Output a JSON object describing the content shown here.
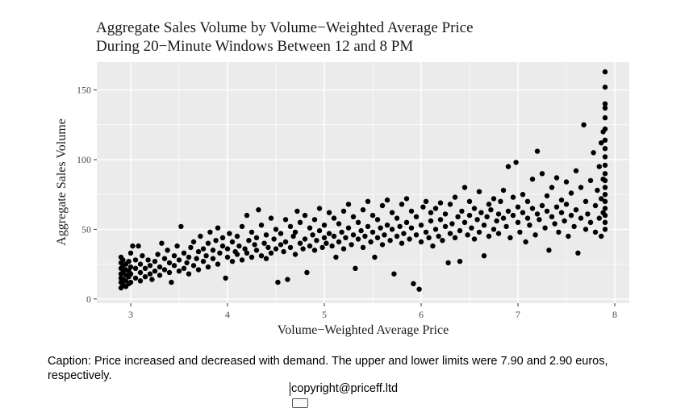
{
  "chart_data": {
    "type": "scatter",
    "title": "Aggregate Sales Volume by Volume−Weighted Average Price",
    "subtitle": "During 20−Minute Windows Between 12 and 8 PM",
    "xlabel": "Volume−Weighted Average Price",
    "ylabel": "Aggregate Sales Volume",
    "xlim": [
      2.65,
      8.15
    ],
    "ylim": [
      -3,
      170
    ],
    "x_ticks": [
      3,
      4,
      5,
      6,
      7,
      8
    ],
    "y_ticks": [
      0,
      50,
      100,
      150
    ],
    "x_tick_labels": [
      "3",
      "4",
      "5",
      "6",
      "7",
      "8"
    ],
    "y_tick_labels": [
      "0",
      "50",
      "100",
      "150"
    ],
    "grid": true,
    "legend": "none",
    "panel_color": "#ebebeb",
    "grid_color": "#ffffff",
    "point_color": "#000000",
    "points": [
      [
        2.9,
        8
      ],
      [
        2.9,
        12
      ],
      [
        2.9,
        15
      ],
      [
        2.9,
        18
      ],
      [
        2.9,
        22
      ],
      [
        2.9,
        26
      ],
      [
        2.9,
        30
      ],
      [
        2.92,
        10
      ],
      [
        2.92,
        14
      ],
      [
        2.92,
        19
      ],
      [
        2.92,
        24
      ],
      [
        2.92,
        28
      ],
      [
        2.95,
        9
      ],
      [
        2.95,
        13
      ],
      [
        2.95,
        17
      ],
      [
        2.95,
        21
      ],
      [
        2.95,
        25
      ],
      [
        2.98,
        11
      ],
      [
        2.98,
        16
      ],
      [
        2.98,
        20
      ],
      [
        2.98,
        27
      ],
      [
        3.0,
        12
      ],
      [
        3.0,
        18
      ],
      [
        3.0,
        23
      ],
      [
        3.0,
        33
      ],
      [
        3.02,
        38
      ],
      [
        3.05,
        15
      ],
      [
        3.05,
        22
      ],
      [
        3.05,
        28
      ],
      [
        3.08,
        38
      ],
      [
        3.1,
        13
      ],
      [
        3.1,
        19
      ],
      [
        3.1,
        25
      ],
      [
        3.12,
        31
      ],
      [
        3.15,
        16
      ],
      [
        3.15,
        22
      ],
      [
        3.18,
        28
      ],
      [
        3.2,
        18
      ],
      [
        3.2,
        24
      ],
      [
        3.22,
        14
      ],
      [
        3.25,
        20
      ],
      [
        3.25,
        27
      ],
      [
        3.28,
        32
      ],
      [
        3.3,
        17
      ],
      [
        3.3,
        23
      ],
      [
        3.32,
        40
      ],
      [
        3.35,
        21
      ],
      [
        3.35,
        29
      ],
      [
        3.38,
        35
      ],
      [
        3.4,
        19
      ],
      [
        3.4,
        26
      ],
      [
        3.42,
        12
      ],
      [
        3.45,
        24
      ],
      [
        3.45,
        31
      ],
      [
        3.48,
        38
      ],
      [
        3.5,
        20
      ],
      [
        3.5,
        28
      ],
      [
        3.52,
        52
      ],
      [
        3.55,
        22
      ],
      [
        3.55,
        33
      ],
      [
        3.58,
        26
      ],
      [
        3.6,
        18
      ],
      [
        3.6,
        30
      ],
      [
        3.62,
        37
      ],
      [
        3.65,
        24
      ],
      [
        3.65,
        41
      ],
      [
        3.68,
        29
      ],
      [
        3.7,
        21
      ],
      [
        3.7,
        34
      ],
      [
        3.72,
        45
      ],
      [
        3.75,
        27
      ],
      [
        3.75,
        36
      ],
      [
        3.78,
        31
      ],
      [
        3.8,
        23
      ],
      [
        3.8,
        40
      ],
      [
        3.82,
        48
      ],
      [
        3.85,
        29
      ],
      [
        3.85,
        35
      ],
      [
        3.88,
        42
      ],
      [
        3.9,
        25
      ],
      [
        3.9,
        51
      ],
      [
        3.92,
        33
      ],
      [
        3.95,
        38
      ],
      [
        3.95,
        44
      ],
      [
        3.98,
        15
      ],
      [
        4.0,
        30
      ],
      [
        4.0,
        36
      ],
      [
        4.02,
        47
      ],
      [
        4.05,
        27
      ],
      [
        4.05,
        41
      ],
      [
        4.08,
        34
      ],
      [
        4.1,
        32
      ],
      [
        4.1,
        45
      ],
      [
        4.12,
        38
      ],
      [
        4.15,
        28
      ],
      [
        4.15,
        52
      ],
      [
        4.18,
        36
      ],
      [
        4.2,
        33
      ],
      [
        4.2,
        60
      ],
      [
        4.22,
        42
      ],
      [
        4.25,
        30
      ],
      [
        4.25,
        48
      ],
      [
        4.28,
        39
      ],
      [
        4.3,
        35
      ],
      [
        4.3,
        44
      ],
      [
        4.32,
        64
      ],
      [
        4.35,
        31
      ],
      [
        4.35,
        53
      ],
      [
        4.38,
        40
      ],
      [
        4.4,
        29
      ],
      [
        4.4,
        46
      ],
      [
        4.42,
        37
      ],
      [
        4.45,
        33
      ],
      [
        4.45,
        58
      ],
      [
        4.48,
        43
      ],
      [
        4.5,
        36
      ],
      [
        4.5,
        50
      ],
      [
        4.52,
        12
      ],
      [
        4.55,
        39
      ],
      [
        4.55,
        47
      ],
      [
        4.58,
        34
      ],
      [
        4.6,
        41
      ],
      [
        4.6,
        57
      ],
      [
        4.62,
        14
      ],
      [
        4.65,
        37
      ],
      [
        4.65,
        52
      ],
      [
        4.68,
        45
      ],
      [
        4.7,
        32
      ],
      [
        4.7,
        48
      ],
      [
        4.72,
        63
      ],
      [
        4.75,
        40
      ],
      [
        4.75,
        55
      ],
      [
        4.78,
        36
      ],
      [
        4.8,
        43
      ],
      [
        4.8,
        60
      ],
      [
        4.82,
        19
      ],
      [
        4.85,
        38
      ],
      [
        4.85,
        51
      ],
      [
        4.88,
        46
      ],
      [
        4.9,
        35
      ],
      [
        4.9,
        57
      ],
      [
        4.92,
        42
      ],
      [
        4.95,
        49
      ],
      [
        4.95,
        65
      ],
      [
        4.98,
        37
      ],
      [
        5.0,
        44
      ],
      [
        5.0,
        53
      ],
      [
        5.02,
        40
      ],
      [
        5.05,
        47
      ],
      [
        5.05,
        62
      ],
      [
        5.08,
        38
      ],
      [
        5.1,
        45
      ],
      [
        5.1,
        58
      ],
      [
        5.12,
        30
      ],
      [
        5.15,
        41
      ],
      [
        5.15,
        54
      ],
      [
        5.18,
        48
      ],
      [
        5.2,
        36
      ],
      [
        5.2,
        63
      ],
      [
        5.22,
        44
      ],
      [
        5.25,
        51
      ],
      [
        5.25,
        68
      ],
      [
        5.28,
        39
      ],
      [
        5.3,
        46
      ],
      [
        5.3,
        59
      ],
      [
        5.32,
        22
      ],
      [
        5.35,
        43
      ],
      [
        5.35,
        55
      ],
      [
        5.38,
        49
      ],
      [
        5.4,
        37
      ],
      [
        5.4,
        64
      ],
      [
        5.42,
        45
      ],
      [
        5.45,
        52
      ],
      [
        5.45,
        70
      ],
      [
        5.48,
        41
      ],
      [
        5.5,
        48
      ],
      [
        5.5,
        60
      ],
      [
        5.52,
        30
      ],
      [
        5.55,
        44
      ],
      [
        5.55,
        57
      ],
      [
        5.58,
        51
      ],
      [
        5.6,
        39
      ],
      [
        5.6,
        67
      ],
      [
        5.62,
        46
      ],
      [
        5.65,
        53
      ],
      [
        5.65,
        71
      ],
      [
        5.68,
        42
      ],
      [
        5.7,
        50
      ],
      [
        5.7,
        62
      ],
      [
        5.72,
        18
      ],
      [
        5.75,
        45
      ],
      [
        5.75,
        58
      ],
      [
        5.78,
        52
      ],
      [
        5.8,
        40
      ],
      [
        5.8,
        68
      ],
      [
        5.82,
        47
      ],
      [
        5.85,
        55
      ],
      [
        5.85,
        72
      ],
      [
        5.88,
        43
      ],
      [
        5.9,
        51
      ],
      [
        5.9,
        63
      ],
      [
        5.92,
        11
      ],
      [
        5.95,
        46
      ],
      [
        5.95,
        59
      ],
      [
        5.98,
        7
      ],
      [
        6.0,
        41
      ],
      [
        6.0,
        53
      ],
      [
        6.02,
        66
      ],
      [
        6.05,
        48
      ],
      [
        6.05,
        70
      ],
      [
        6.08,
        44
      ],
      [
        6.1,
        56
      ],
      [
        6.1,
        62
      ],
      [
        6.12,
        38
      ],
      [
        6.15,
        50
      ],
      [
        6.15,
        65
      ],
      [
        6.18,
        45
      ],
      [
        6.2,
        57
      ],
      [
        6.2,
        69
      ],
      [
        6.22,
        42
      ],
      [
        6.25,
        52
      ],
      [
        6.25,
        61
      ],
      [
        6.28,
        26
      ],
      [
        6.3,
        47
      ],
      [
        6.3,
        68
      ],
      [
        6.32,
        54
      ],
      [
        6.35,
        44
      ],
      [
        6.35,
        73
      ],
      [
        6.38,
        59
      ],
      [
        6.4,
        49
      ],
      [
        6.4,
        27
      ],
      [
        6.42,
        63
      ],
      [
        6.45,
        55
      ],
      [
        6.45,
        80
      ],
      [
        6.48,
        46
      ],
      [
        6.5,
        60
      ],
      [
        6.5,
        70
      ],
      [
        6.52,
        51
      ],
      [
        6.55,
        43
      ],
      [
        6.55,
        65
      ],
      [
        6.58,
        57
      ],
      [
        6.6,
        48
      ],
      [
        6.6,
        77
      ],
      [
        6.62,
        62
      ],
      [
        6.65,
        53
      ],
      [
        6.65,
        31
      ],
      [
        6.68,
        59
      ],
      [
        6.7,
        45
      ],
      [
        6.7,
        68
      ],
      [
        6.72,
        64
      ],
      [
        6.75,
        50
      ],
      [
        6.75,
        72
      ],
      [
        6.78,
        56
      ],
      [
        6.8,
        61
      ],
      [
        6.8,
        47
      ],
      [
        6.82,
        70
      ],
      [
        6.85,
        58
      ],
      [
        6.85,
        78
      ],
      [
        6.88,
        52
      ],
      [
        6.9,
        63
      ],
      [
        6.9,
        95
      ],
      [
        6.92,
        44
      ],
      [
        6.95,
        60
      ],
      [
        6.95,
        73
      ],
      [
        6.98,
        98
      ],
      [
        7.0,
        55
      ],
      [
        7.0,
        66
      ],
      [
        7.02,
        48
      ],
      [
        7.05,
        62
      ],
      [
        7.05,
        75
      ],
      [
        7.08,
        41
      ],
      [
        7.1,
        58
      ],
      [
        7.1,
        70
      ],
      [
        7.12,
        53
      ],
      [
        7.15,
        65
      ],
      [
        7.15,
        86
      ],
      [
        7.18,
        46
      ],
      [
        7.2,
        61
      ],
      [
        7.2,
        106
      ],
      [
        7.22,
        57
      ],
      [
        7.25,
        67
      ],
      [
        7.25,
        90
      ],
      [
        7.28,
        51
      ],
      [
        7.3,
        63
      ],
      [
        7.3,
        74
      ],
      [
        7.32,
        35
      ],
      [
        7.35,
        59
      ],
      [
        7.35,
        80
      ],
      [
        7.38,
        54
      ],
      [
        7.4,
        66
      ],
      [
        7.4,
        87
      ],
      [
        7.42,
        48
      ],
      [
        7.45,
        62
      ],
      [
        7.45,
        71
      ],
      [
        7.48,
        56
      ],
      [
        7.5,
        68
      ],
      [
        7.5,
        84
      ],
      [
        7.52,
        45
      ],
      [
        7.55,
        60
      ],
      [
        7.55,
        76
      ],
      [
        7.58,
        52
      ],
      [
        7.6,
        64
      ],
      [
        7.6,
        92
      ],
      [
        7.62,
        33
      ],
      [
        7.65,
        58
      ],
      [
        7.65,
        80
      ],
      [
        7.68,
        125
      ],
      [
        7.7,
        50
      ],
      [
        7.7,
        70
      ],
      [
        7.72,
        61
      ],
      [
        7.75,
        85
      ],
      [
        7.75,
        55
      ],
      [
        7.78,
        105
      ],
      [
        7.8,
        48
      ],
      [
        7.8,
        67
      ],
      [
        7.82,
        78
      ],
      [
        7.84,
        58
      ],
      [
        7.84,
        95
      ],
      [
        7.86,
        45
      ],
      [
        7.86,
        72
      ],
      [
        7.86,
        112
      ],
      [
        7.88,
        62
      ],
      [
        7.88,
        86
      ],
      [
        7.88,
        120
      ],
      [
        7.9,
        50
      ],
      [
        7.9,
        55
      ],
      [
        7.9,
        60
      ],
      [
        7.9,
        65
      ],
      [
        7.9,
        70
      ],
      [
        7.9,
        75
      ],
      [
        7.9,
        80
      ],
      [
        7.9,
        85
      ],
      [
        7.9,
        90
      ],
      [
        7.9,
        96
      ],
      [
        7.9,
        102
      ],
      [
        7.9,
        108
      ],
      [
        7.9,
        114
      ],
      [
        7.9,
        122
      ],
      [
        7.9,
        130
      ],
      [
        7.9,
        137
      ],
      [
        7.9,
        140
      ],
      [
        7.9,
        152
      ],
      [
        7.9,
        163
      ]
    ]
  },
  "caption": "Caption: Price increased and decreased with demand. The upper and lower limits were 7.90 and 2.90 euros, respectively.",
  "copyright": "copyright@priceff.ltd"
}
